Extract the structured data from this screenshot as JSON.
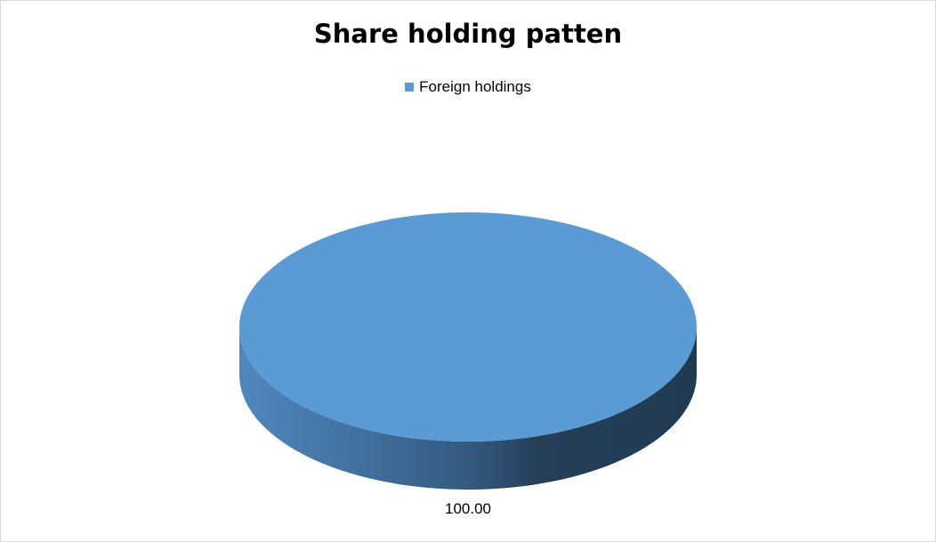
{
  "chart_data": {
    "type": "pie",
    "style": "3d",
    "title": "Share holding patten",
    "categories": [
      "Foreign holdings"
    ],
    "values": [
      100.0
    ],
    "data_labels": [
      "100.00"
    ],
    "colors": [
      "#5B9BD5"
    ],
    "legend_position": "top"
  }
}
